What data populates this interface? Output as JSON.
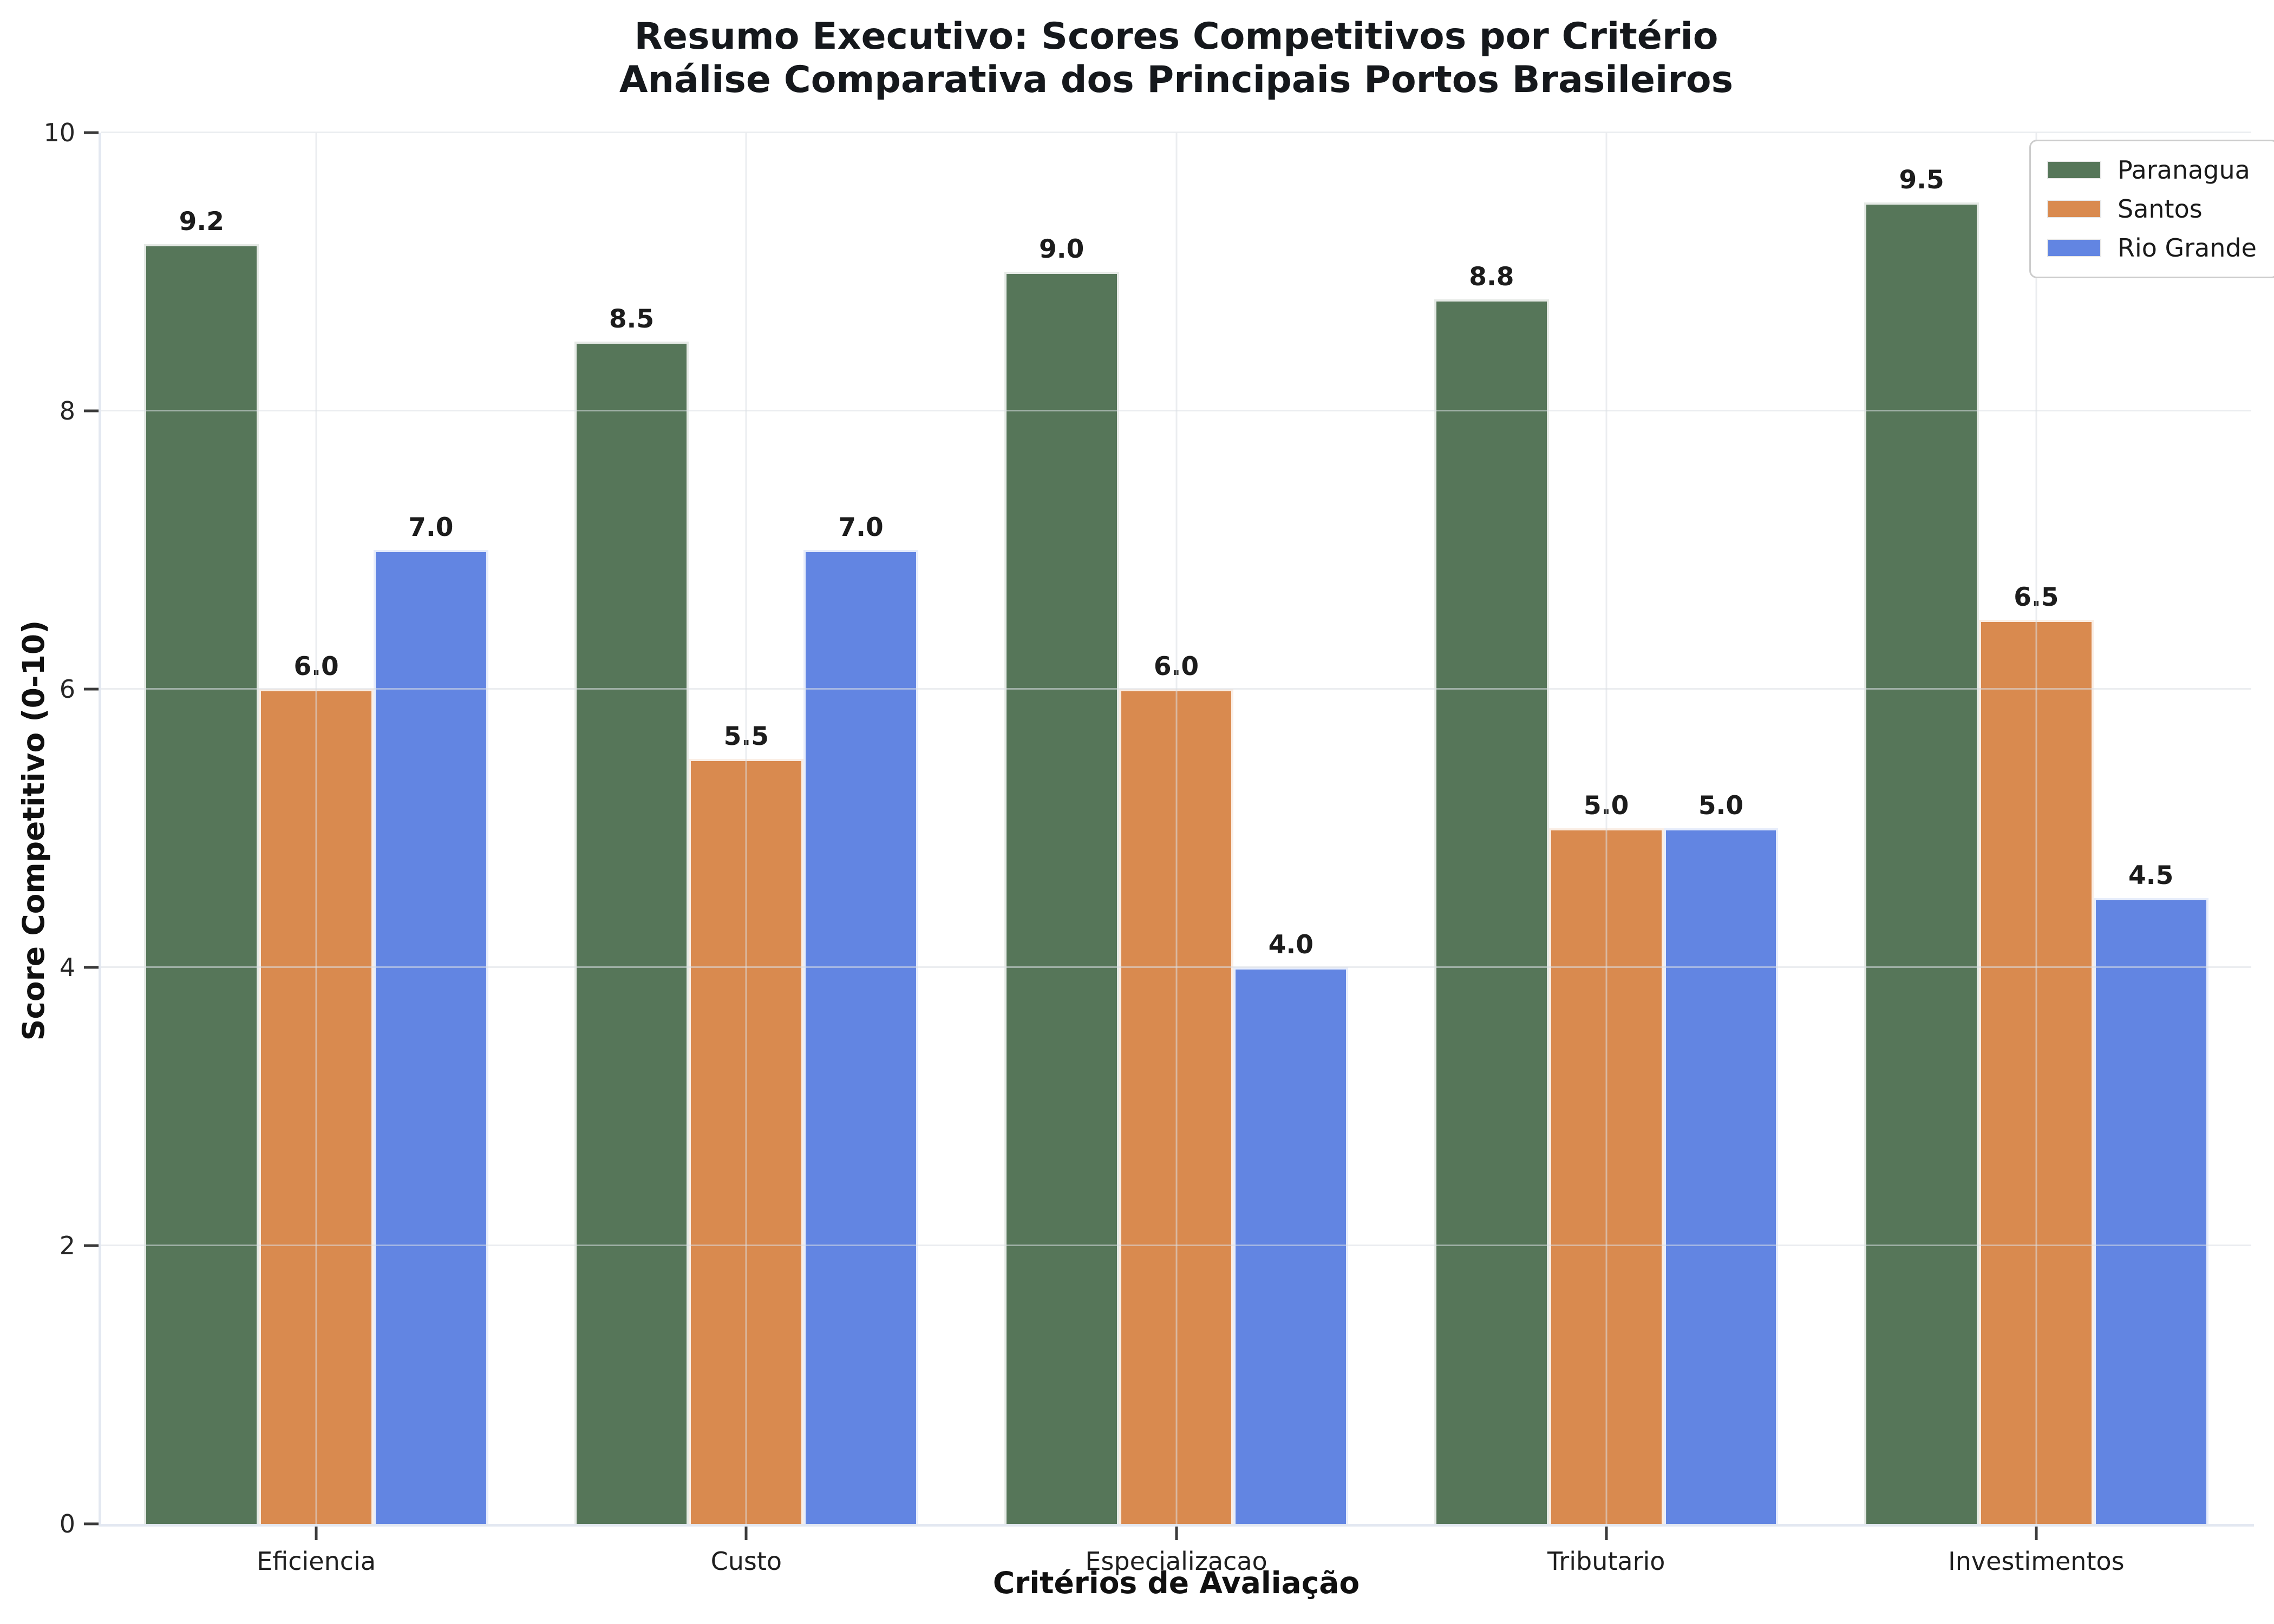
{
  "figure": {
    "title_line1": "Resumo Executivo: Scores Competitivos por Critério",
    "title_line2": "Análise Comparativa dos Principais Portos Brasileiros"
  },
  "chart_data": {
    "type": "bar",
    "title": "Resumo Executivo: Scores Competitivos por Critério",
    "subtitle": "Análise Comparativa dos Principais Portos Brasileiros",
    "categories": [
      "Eficiencia",
      "Custo",
      "Especializacao",
      "Tributario",
      "Investimentos"
    ],
    "series": [
      {
        "name": "Paranagua",
        "color": "#567659",
        "values": [
          9.2,
          8.5,
          9.0,
          8.8,
          9.5
        ]
      },
      {
        "name": "Santos",
        "color": "#D98A4F",
        "values": [
          6.0,
          5.5,
          6.0,
          5.0,
          6.5
        ]
      },
      {
        "name": "Rio Grande",
        "color": "#6285E2",
        "values": [
          7.0,
          7.0,
          4.0,
          5.0,
          4.5
        ]
      }
    ],
    "xlabel": "Critérios de Avaliação",
    "ylabel": "Score Competitivo (0-10)",
    "ylim": [
      0,
      10
    ],
    "yticks": [
      0,
      2,
      4,
      6,
      8,
      10
    ],
    "grid": true,
    "grid_axis": "both",
    "legend_position": "upper right",
    "value_label_decimals": 1,
    "background_color": "#ffffff",
    "spine_color": "#e3e8f1",
    "group_width_fraction": 0.8
  }
}
